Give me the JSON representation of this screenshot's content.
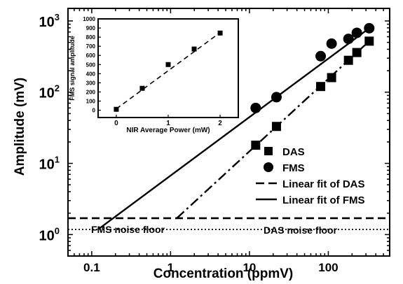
{
  "chart_data": [
    {
      "type": "scatter",
      "xlabel": "Concentration (ppmV)",
      "ylabel": "Amplitude (mV)",
      "xscale": "log",
      "yscale": "log",
      "xlim": [
        0.05,
        600
      ],
      "ylim": [
        0.5,
        1500
      ],
      "xticks": [
        {
          "value": 0.1,
          "label": "0.1"
        },
        {
          "value": 1,
          "label": "1"
        },
        {
          "value": 10,
          "label": "10"
        },
        {
          "value": 100,
          "label": "100"
        }
      ],
      "yticks": [
        {
          "value": 1,
          "base": "10",
          "exp": "0"
        },
        {
          "value": 10,
          "base": "10",
          "exp": "1"
        },
        {
          "value": 100,
          "base": "10",
          "exp": "2"
        },
        {
          "value": 1000,
          "base": "10",
          "exp": "3"
        }
      ],
      "series": [
        {
          "name": "DAS",
          "marker": "square",
          "x": [
            12,
            22,
            80,
            110,
            180,
            230,
            330
          ],
          "y": [
            18,
            33,
            120,
            160,
            280,
            360,
            520
          ]
        },
        {
          "name": "FMS",
          "marker": "circle",
          "x": [
            12,
            22,
            80,
            110,
            180,
            230,
            330
          ],
          "y": [
            60,
            85,
            320,
            480,
            560,
            680,
            790
          ]
        }
      ],
      "fit_lines": [
        {
          "name": "Linear fit of DAS",
          "style": "dashdot",
          "x": [
            1.2,
            330
          ],
          "y": [
            1.7,
            520
          ]
        },
        {
          "name": "Linear fit of FMS",
          "style": "solid",
          "x": [
            0.12,
            330
          ],
          "y": [
            1.18,
            790
          ]
        }
      ],
      "noise_floors": [
        {
          "label": "DAS noise floor",
          "style": "dashed",
          "y": 1.7
        },
        {
          "label": "FMS noise floor",
          "style": "dotted",
          "y": 1.18
        }
      ],
      "legend": {
        "position": "bottom-right"
      }
    },
    {
      "type": "scatter",
      "xlabel": "NIR Average Power (mW)",
      "ylabel": "FMS signal amplitude",
      "xlim": [
        -0.35,
        2.35
      ],
      "ylim": [
        -80,
        1000
      ],
      "xticks": [
        0,
        1,
        2
      ],
      "yticks": [
        0,
        100,
        200,
        300,
        400,
        500,
        600,
        700,
        800,
        900,
        1000
      ],
      "series": [
        {
          "name": "",
          "marker": "square",
          "x": [
            0,
            0.5,
            1,
            1.5,
            2
          ],
          "y": [
            10,
            240,
            500,
            670,
            845
          ]
        }
      ],
      "fit_lines": [
        {
          "name": "",
          "style": "dashed",
          "x": [
            0,
            2
          ],
          "y": [
            15,
            850
          ]
        }
      ]
    }
  ]
}
